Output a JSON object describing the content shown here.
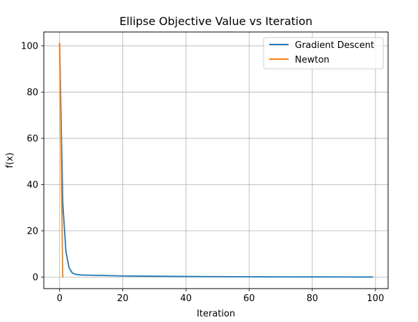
{
  "chart_data": {
    "type": "line",
    "title": "Ellipse Objective Value vs Iteration",
    "xlabel": "Iteration",
    "ylabel": "f(x)",
    "xlim": [
      -5,
      104
    ],
    "ylim": [
      -5,
      106
    ],
    "xticks": [
      0,
      20,
      40,
      60,
      80,
      100
    ],
    "yticks": [
      0,
      20,
      40,
      60,
      80,
      100
    ],
    "grid": true,
    "legend_position": "top-right",
    "series": [
      {
        "name": "Gradient Descent",
        "color": "#1f77b4",
        "x": [
          0,
          1,
          2,
          3,
          4,
          5,
          6,
          7,
          8,
          10,
          15,
          20,
          30,
          40,
          50,
          60,
          70,
          80,
          90,
          99
        ],
        "y": [
          101,
          32,
          11,
          4,
          1.8,
          1.2,
          1.0,
          0.9,
          0.85,
          0.8,
          0.65,
          0.5,
          0.35,
          0.25,
          0.18,
          0.12,
          0.08,
          0.05,
          0.03,
          0.02
        ]
      },
      {
        "name": "Newton",
        "color": "#ff7f0e",
        "x": [
          0,
          1
        ],
        "y": [
          101,
          0
        ]
      }
    ]
  }
}
